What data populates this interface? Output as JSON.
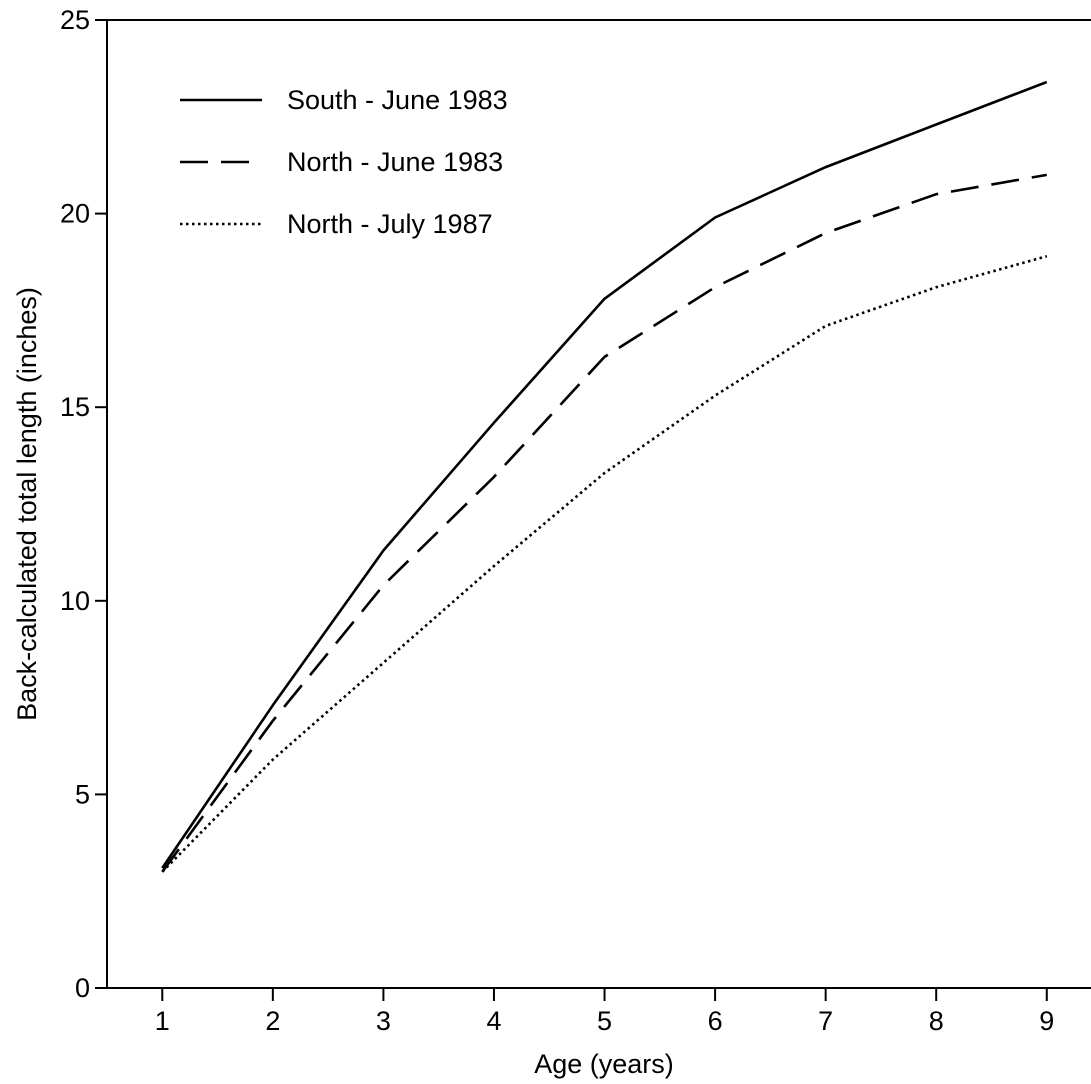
{
  "chart_data": {
    "type": "line",
    "title": "",
    "xlabel": "Age (years)",
    "ylabel": "Back-calculated total length (inches)",
    "x": [
      1,
      2,
      3,
      4,
      5,
      6,
      7,
      8,
      9
    ],
    "xlim": [
      0.5,
      9.4
    ],
    "ylim": [
      0,
      25
    ],
    "xticks": [
      "1",
      "2",
      "3",
      "4",
      "5",
      "6",
      "7",
      "8",
      "9"
    ],
    "yticks": [
      "0",
      "5",
      "10",
      "15",
      "20",
      "25"
    ],
    "grid": false,
    "legend": {
      "placement": "top-left"
    },
    "series": [
      {
        "name": "South - June 1983",
        "style": "solid",
        "color": "#000000",
        "values": [
          3.1,
          7.3,
          11.3,
          14.6,
          17.8,
          19.9,
          21.2,
          22.3,
          23.4
        ]
      },
      {
        "name": "North - June 1983",
        "style": "dashed",
        "color": "#000000",
        "values": [
          3.0,
          6.9,
          10.4,
          13.2,
          16.3,
          18.1,
          19.5,
          20.5,
          21.0
        ]
      },
      {
        "name": "North - July 1987",
        "style": "dotted",
        "color": "#000000",
        "values": [
          3.0,
          5.9,
          8.4,
          10.9,
          13.3,
          15.3,
          17.1,
          18.1,
          18.9
        ]
      }
    ]
  }
}
